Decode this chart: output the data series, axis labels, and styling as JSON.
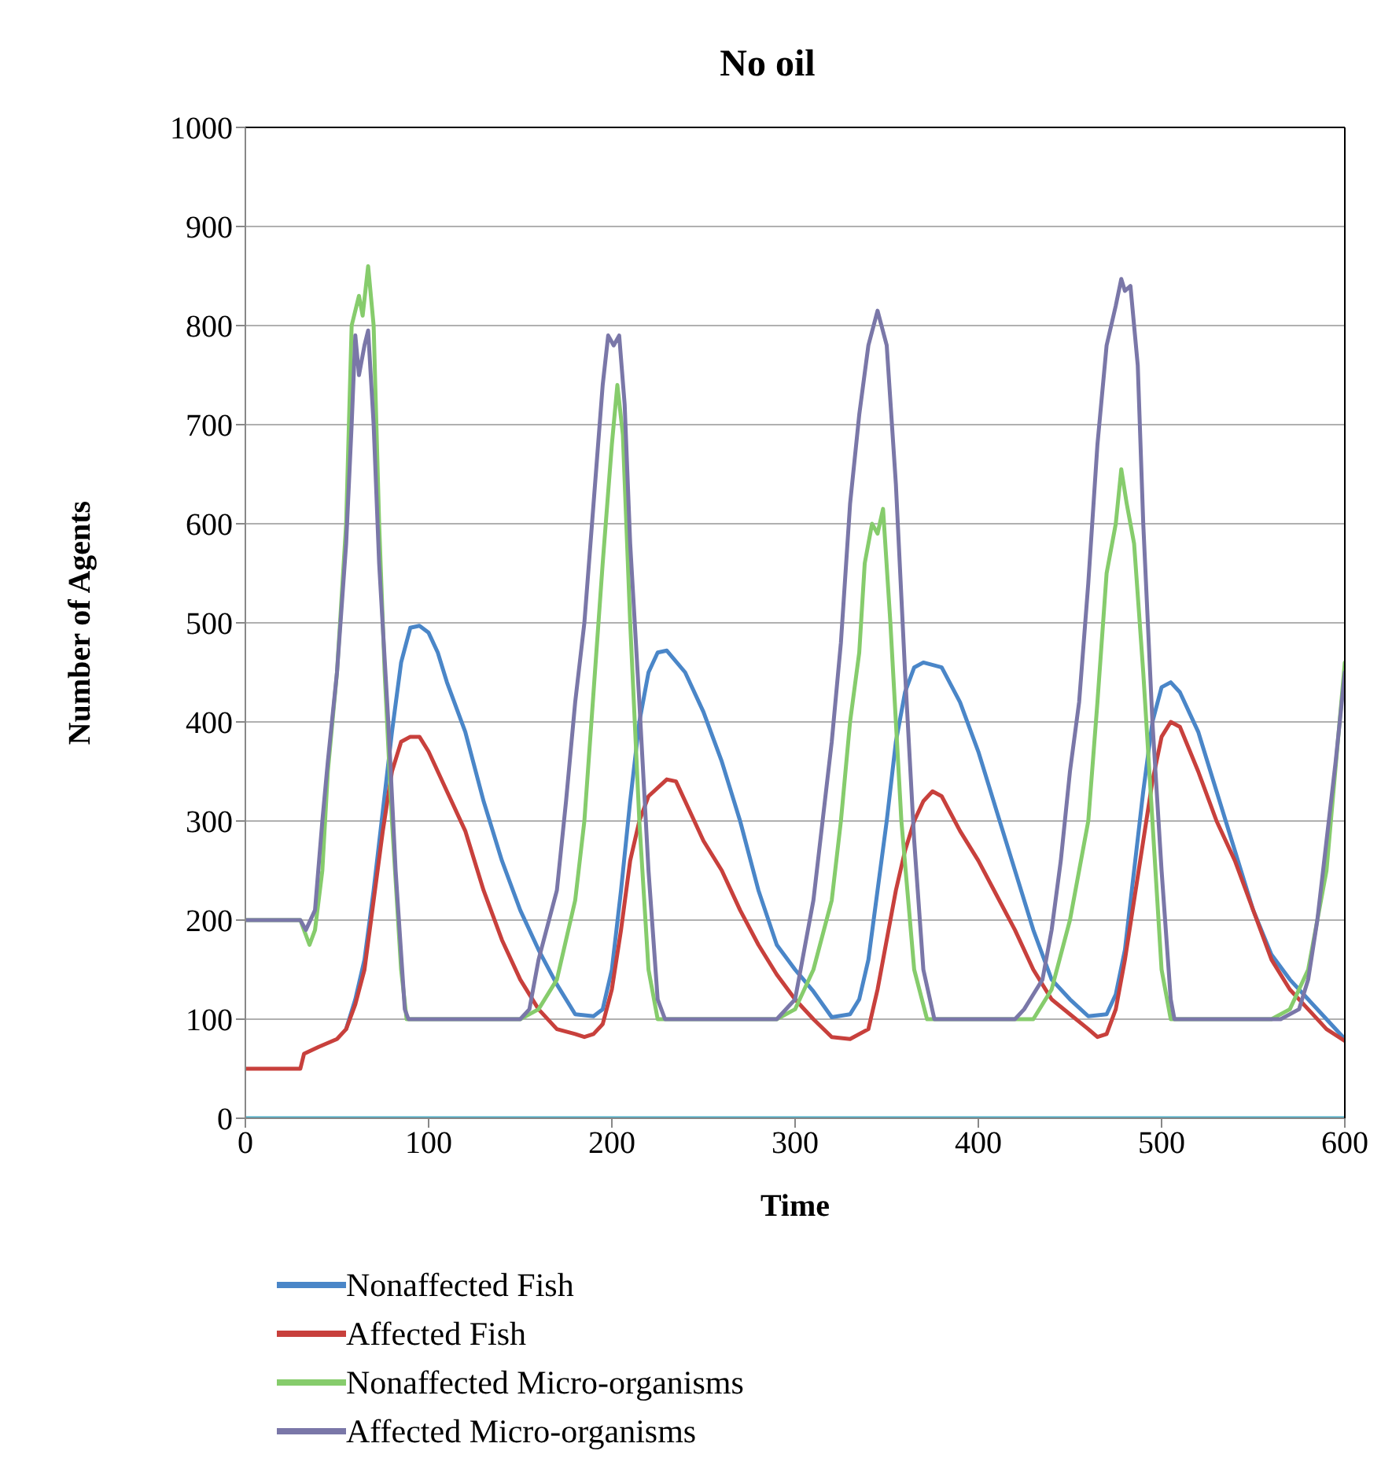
{
  "chart_data": {
    "type": "line",
    "title": "No oil",
    "xlabel": "Time",
    "ylabel": "Number of Agents",
    "xlim": [
      0,
      600
    ],
    "xticks": [
      0,
      100,
      200,
      300,
      400,
      500,
      600
    ],
    "ylim": [
      0,
      1000
    ],
    "yticks": [
      0,
      100,
      200,
      300,
      400,
      500,
      600,
      700,
      800,
      900,
      1000
    ],
    "grid": "y",
    "legend": "bottom",
    "marker": "none",
    "line_style": "solid",
    "series": [
      {
        "name": "Nonaffected Fish",
        "color": "#4a86c8",
        "x": [
          55,
          60,
          65,
          70,
          75,
          80,
          85,
          90,
          95,
          100,
          105,
          110,
          120,
          130,
          140,
          150,
          160,
          170,
          180,
          190,
          195,
          200,
          205,
          210,
          215,
          220,
          225,
          230,
          240,
          250,
          260,
          270,
          280,
          290,
          300,
          310,
          320,
          330,
          335,
          340,
          345,
          350,
          355,
          360,
          365,
          370,
          380,
          390,
          400,
          410,
          420,
          430,
          440,
          450,
          460,
          470,
          475,
          480,
          485,
          490,
          495,
          500,
          505,
          510,
          520,
          530,
          540,
          550,
          560,
          570,
          580,
          590,
          600
        ],
        "values": [
          90,
          120,
          160,
          230,
          310,
          390,
          460,
          495,
          497,
          490,
          470,
          440,
          390,
          320,
          260,
          210,
          170,
          135,
          105,
          103,
          110,
          150,
          230,
          320,
          400,
          450,
          470,
          472,
          450,
          410,
          360,
          300,
          230,
          175,
          150,
          128,
          102,
          105,
          120,
          160,
          230,
          300,
          380,
          430,
          455,
          460,
          455,
          420,
          370,
          310,
          250,
          190,
          140,
          120,
          103,
          105,
          125,
          170,
          250,
          330,
          400,
          435,
          440,
          430,
          390,
          330,
          270,
          210,
          165,
          140,
          120,
          100,
          80
        ]
      },
      {
        "name": "Affected Fish",
        "color": "#c8403c",
        "x": [
          0,
          30,
          32,
          40,
          50,
          55,
          60,
          65,
          70,
          75,
          80,
          85,
          90,
          95,
          100,
          110,
          120,
          130,
          140,
          150,
          160,
          170,
          180,
          185,
          190,
          195,
          200,
          205,
          210,
          215,
          220,
          230,
          235,
          240,
          250,
          260,
          270,
          280,
          290,
          300,
          310,
          320,
          330,
          340,
          345,
          350,
          355,
          360,
          365,
          370,
          375,
          380,
          390,
          400,
          410,
          420,
          430,
          440,
          450,
          460,
          465,
          470,
          475,
          480,
          485,
          490,
          495,
          500,
          505,
          510,
          520,
          530,
          540,
          550,
          560,
          570,
          580,
          590,
          600
        ],
        "values": [
          50,
          50,
          65,
          72,
          80,
          90,
          115,
          150,
          220,
          290,
          350,
          380,
          385,
          385,
          370,
          330,
          290,
          230,
          180,
          140,
          110,
          90,
          85,
          82,
          85,
          95,
          130,
          190,
          260,
          300,
          325,
          342,
          340,
          320,
          280,
          250,
          210,
          175,
          145,
          120,
          100,
          82,
          80,
          90,
          130,
          180,
          230,
          270,
          300,
          320,
          330,
          325,
          290,
          260,
          225,
          190,
          150,
          120,
          105,
          90,
          82,
          85,
          110,
          160,
          220,
          280,
          340,
          385,
          400,
          395,
          350,
          300,
          260,
          210,
          160,
          130,
          110,
          90,
          78
        ]
      },
      {
        "name": "Nonaffected Micro-organisms",
        "color": "#86cc6c",
        "x": [
          0,
          30,
          32,
          35,
          38,
          42,
          45,
          50,
          55,
          58,
          62,
          64,
          67,
          70,
          73,
          76,
          80,
          85,
          88,
          100,
          150,
          160,
          170,
          180,
          185,
          190,
          195,
          200,
          203,
          206,
          210,
          215,
          220,
          225,
          290,
          300,
          310,
          320,
          325,
          330,
          335,
          338,
          342,
          345,
          348,
          352,
          358,
          365,
          372,
          420,
          430,
          440,
          450,
          460,
          465,
          470,
          475,
          478,
          481,
          485,
          490,
          495,
          500,
          505,
          560,
          570,
          580,
          590,
          600
        ],
        "values": [
          200,
          200,
          190,
          175,
          190,
          250,
          350,
          450,
          600,
          800,
          830,
          810,
          860,
          800,
          600,
          450,
          300,
          150,
          100,
          100,
          100,
          110,
          140,
          220,
          300,
          430,
          560,
          680,
          740,
          690,
          500,
          300,
          150,
          100,
          100,
          110,
          150,
          220,
          300,
          400,
          470,
          560,
          600,
          590,
          615,
          500,
          300,
          150,
          100,
          100,
          100,
          130,
          200,
          300,
          420,
          550,
          600,
          655,
          620,
          580,
          450,
          300,
          150,
          100,
          100,
          110,
          150,
          250,
          460
        ]
      },
      {
        "name": "Affected Micro-organisms",
        "color": "#7a77a8",
        "x": [
          0,
          30,
          33,
          38,
          42,
          45,
          50,
          55,
          58,
          60,
          62,
          65,
          67,
          70,
          73,
          78,
          82,
          87,
          89,
          150,
          155,
          160,
          170,
          175,
          180,
          185,
          190,
          195,
          198,
          201,
          204,
          207,
          210,
          215,
          220,
          225,
          229,
          290,
          300,
          305,
          310,
          315,
          320,
          325,
          330,
          335,
          340,
          345,
          350,
          355,
          360,
          365,
          370,
          376,
          420,
          425,
          430,
          435,
          440,
          445,
          450,
          455,
          460,
          465,
          470,
          475,
          478,
          480,
          483,
          487,
          490,
          495,
          500,
          505,
          507,
          565,
          575,
          580,
          585,
          590,
          595,
          600
        ],
        "values": [
          200,
          200,
          190,
          210,
          300,
          360,
          450,
          580,
          700,
          790,
          750,
          780,
          795,
          700,
          560,
          400,
          250,
          110,
          100,
          100,
          110,
          160,
          230,
          320,
          420,
          500,
          620,
          740,
          790,
          780,
          790,
          720,
          580,
          420,
          250,
          120,
          100,
          100,
          120,
          170,
          220,
          300,
          380,
          480,
          620,
          710,
          780,
          815,
          780,
          640,
          450,
          280,
          150,
          100,
          100,
          110,
          125,
          140,
          190,
          260,
          350,
          420,
          540,
          680,
          780,
          820,
          847,
          835,
          840,
          760,
          600,
          400,
          250,
          120,
          100,
          100,
          110,
          140,
          200,
          280,
          360,
          450
        ]
      },
      {
        "color": "#4bacc6",
        "x": [
          0,
          600
        ],
        "values": [
          0,
          0
        ]
      }
    ]
  }
}
